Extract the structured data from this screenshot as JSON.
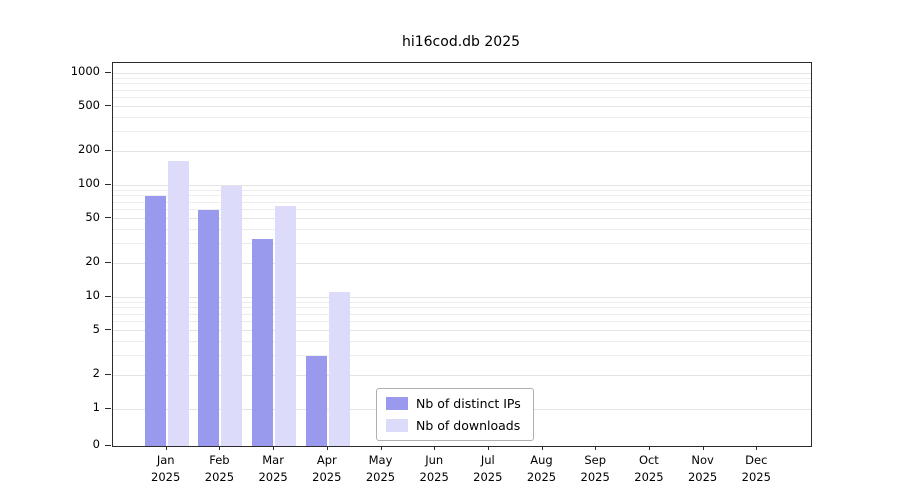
{
  "chart_data": {
    "type": "bar",
    "title": "hi16cod.db 2025",
    "scale": "symlog",
    "grid": true,
    "legend_position": "bottom-center",
    "categories": [
      "Jan",
      "Feb",
      "Mar",
      "Apr",
      "May",
      "Jun",
      "Jul",
      "Aug",
      "Sep",
      "Oct",
      "Nov",
      "Dec"
    ],
    "year_label": "2025",
    "yticks": [
      0,
      1,
      2,
      5,
      10,
      20,
      50,
      100,
      200,
      500,
      1000
    ],
    "ylim": [
      0,
      1200
    ],
    "series": [
      {
        "name": "Nb of distinct IPs",
        "color": "#9999ee",
        "values": [
          80,
          60,
          33,
          3,
          0,
          0,
          0,
          0,
          0,
          0,
          0,
          0
        ]
      },
      {
        "name": "Nb of downloads",
        "color": "#dcdcfa",
        "values": [
          165,
          98,
          65,
          11,
          0,
          0,
          0,
          0,
          0,
          0,
          0,
          0
        ]
      }
    ]
  }
}
